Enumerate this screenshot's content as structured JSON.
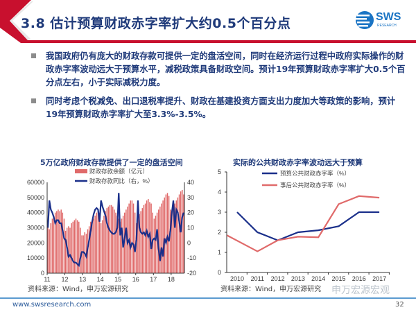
{
  "header": {
    "title": "3.8 估计预算财政赤字率扩大约0.5个百分点",
    "logo_text": "SWS",
    "logo_subtext": "RESEARCH",
    "accent_color": "#c8102e",
    "title_color": "#1f3a7a"
  },
  "bullets": [
    "我国政府仍有庞大的财政存款可提供一定的盘活空间，同时在经济运行过程中政府实际操作的财政赤字率波动远大于预算水平，减税政策具备财政空间。预计19年预算财政赤字率扩大0.5个百分点左右，小于实际减税力度。",
    "同时考虑个税减免、出口退税率提升、财政在基建投资方面支出力度加大等政策的影响，预计19年预算财政赤字率扩大至3.3%-3.5%。"
  ],
  "chart_data": [
    {
      "type": "bar+line",
      "title": "5万亿政府财政存款提供了一定的盘活空间",
      "x_tick_labels": [
        "11",
        "12",
        "13",
        "14",
        "15",
        "16",
        "17",
        "18"
      ],
      "x_start": "2011-01",
      "frequency": "monthly",
      "y_left": {
        "ticks": [
          "0",
          "10000",
          "20000",
          "30000",
          "40000",
          "50000",
          "60000"
        ],
        "range": [
          0,
          60000
        ]
      },
      "y_right": {
        "ticks": [
          "-20",
          "-10",
          "0",
          "10",
          "20",
          "30",
          "40"
        ],
        "range": [
          -20,
          40
        ]
      },
      "series": [
        {
          "name": "财政存款余额（亿元）",
          "kind": "bar",
          "axis": "left",
          "color": "#e06a6a",
          "values": [
            30000,
            29000,
            33000,
            36000,
            38000,
            40000,
            41000,
            42000,
            41000,
            42000,
            40000,
            36000,
            28000,
            30000,
            31000,
            30000,
            33000,
            34000,
            35000,
            36000,
            35000,
            34000,
            30000,
            25000,
            25000,
            27000,
            26000,
            29000,
            31000,
            34000,
            35000,
            36000,
            38000,
            40000,
            42000,
            40000,
            33000,
            35000,
            38000,
            41000,
            43000,
            44000,
            45000,
            45000,
            44000,
            42000,
            40000,
            38000,
            36000,
            34000,
            36000,
            38000,
            40000,
            42000,
            44000,
            46000,
            48000,
            48000,
            46000,
            40000,
            33000,
            37000,
            39000,
            41000,
            43000,
            45000,
            46000,
            48000,
            49000,
            47000,
            46000,
            40000,
            36000,
            38000,
            40000,
            42000,
            44000,
            46000,
            48000,
            50000,
            52000,
            53000,
            51000,
            42000,
            40000,
            44000,
            46000,
            48000,
            50000,
            52000,
            54000,
            55000,
            52000
          ]
        },
        {
          "name": "财政存款同比（右，%）",
          "kind": "line",
          "axis": "right",
          "color": "#1a2f8a",
          "values": [
            10,
            28,
            22,
            20,
            17,
            13,
            15,
            15,
            13,
            13,
            8,
            3,
            2,
            -3,
            -9,
            -8,
            -10,
            -12,
            -13,
            -13,
            -14,
            -15,
            -10,
            -6,
            -6,
            -7,
            -9,
            -3,
            2,
            8,
            14,
            19,
            22,
            23,
            22,
            14,
            28,
            24,
            21,
            18,
            13,
            10,
            8,
            7,
            6,
            6,
            7,
            10,
            33,
            5,
            10,
            -3,
            3,
            10,
            0,
            2,
            -3,
            0,
            -1,
            -6,
            2,
            28,
            10,
            7,
            6,
            7,
            5,
            8,
            4,
            6,
            -4,
            2,
            3,
            2,
            9,
            -4,
            -12,
            -3,
            -9,
            3,
            0,
            4,
            1,
            8,
            20,
            28,
            10,
            22,
            20,
            14,
            7,
            17,
            20
          ]
        }
      ],
      "legend": "top-center",
      "source": "资料来源：Wind，申万宏源研究"
    },
    {
      "type": "line",
      "title": "实际的公共财政赤字率波动远大于预算",
      "categories": [
        "2010",
        "2011",
        "2012",
        "2013",
        "2014",
        "2015",
        "2016",
        "2017"
      ],
      "y": {
        "ticks": [
          "0",
          "1",
          "2",
          "3",
          "4",
          "5"
        ],
        "range": [
          0,
          5
        ]
      },
      "series": [
        {
          "name": "预算公共财政赤字率（%）",
          "color": "#1a2f8a",
          "x": [
            2010,
            2011,
            2012,
            2013,
            2014,
            2015,
            2016,
            2017
          ],
          "values": [
            3.0,
            2.0,
            1.6,
            2.0,
            2.1,
            2.3,
            3.0,
            3.0
          ]
        },
        {
          "name": "事后公共财政赤字率（%）",
          "color": "#e06a6a",
          "x": [
            2009.5,
            2011,
            2012,
            2013,
            2014,
            2015,
            2016,
            2017
          ],
          "values": [
            1.85,
            1.05,
            1.6,
            1.78,
            1.75,
            3.4,
            3.8,
            3.72
          ]
        }
      ],
      "legend": "top-right",
      "source": "资料来源：Wind，申万宏源研究"
    }
  ],
  "watermark": "申万宏源宏观",
  "footer": {
    "url": "www.swsresearch.com",
    "page": "32"
  }
}
